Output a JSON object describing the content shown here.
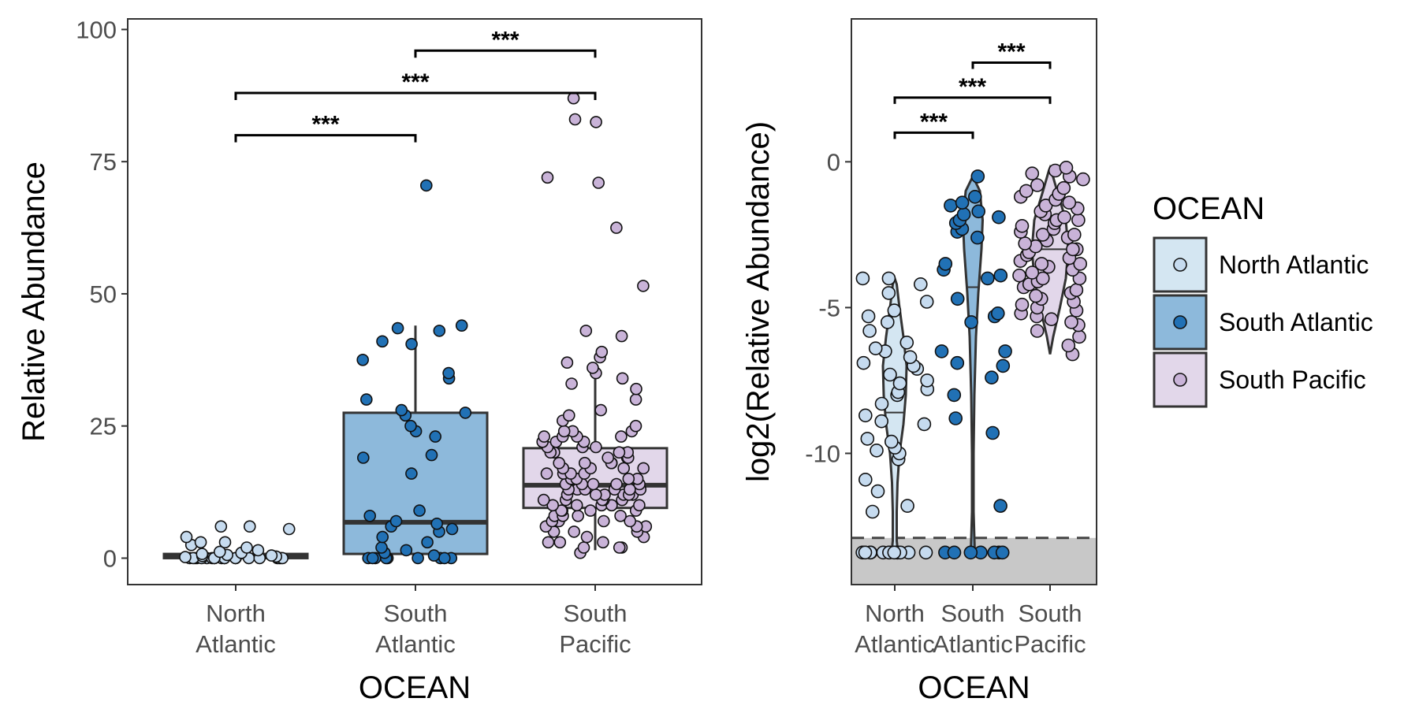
{
  "chart_data": [
    {
      "type": "box",
      "xlabel": "OCEAN",
      "ylabel": "Relative Abundance",
      "categories": [
        "North Atlantic",
        "South Atlantic",
        "South Pacific"
      ],
      "category_lines": [
        [
          "North",
          "Atlantic"
        ],
        [
          "South",
          "Atlantic"
        ],
        [
          "South",
          "Pacific"
        ]
      ],
      "ylim": [
        -5,
        102
      ],
      "yticks": [
        0,
        25,
        50,
        75,
        100
      ],
      "boxes": [
        {
          "category": "North Atlantic",
          "q1": 0.0,
          "median": 0.3,
          "q3": 0.8,
          "whisker_low": 0.0,
          "whisker_high": 0.8
        },
        {
          "category": "South Atlantic",
          "q1": 0.8,
          "median": 6.8,
          "q3": 27.5,
          "whisker_low": 0.0,
          "whisker_high": 44.0
        },
        {
          "category": "South Pacific",
          "q1": 9.5,
          "median": 13.8,
          "q3": 20.8,
          "whisker_low": 1.5,
          "whisker_high": 37.0
        }
      ],
      "points": {
        "North Atlantic": [
          0,
          0,
          0,
          0,
          0,
          0,
          0,
          0,
          0,
          0,
          0,
          0,
          0,
          0,
          0,
          0,
          0,
          0,
          0,
          0,
          0.2,
          0.3,
          0.4,
          0.5,
          0.6,
          0.8,
          1.0,
          1.2,
          1.5,
          2.0,
          2.5,
          3.0,
          3.0,
          4.0,
          5.5,
          6.0,
          6.0
        ],
        "South Atlantic": [
          0,
          0,
          0,
          0,
          0,
          0,
          0,
          0,
          0,
          0.5,
          1.0,
          1.5,
          2.0,
          3.0,
          4.0,
          5.0,
          5.5,
          6.0,
          6.5,
          7.0,
          8.0,
          9.0,
          16.0,
          19.0,
          19.5,
          23.0,
          24.0,
          25.0,
          27.0,
          27.5,
          28.0,
          30.0,
          34.0,
          35.0,
          37.5,
          40.5,
          41.0,
          43.0,
          43.5,
          44.0,
          70.5
        ],
        "South Pacific": [
          1,
          2,
          2,
          2,
          3,
          3,
          3,
          4,
          4,
          5,
          5,
          5,
          6,
          6,
          6,
          7,
          7,
          7,
          7,
          8,
          8,
          8,
          8,
          9,
          9,
          9,
          9,
          10,
          10,
          10,
          10,
          10,
          11,
          11,
          11,
          11,
          11,
          12,
          12,
          12,
          12,
          12,
          12,
          13,
          13,
          13,
          13,
          13,
          13,
          14,
          14,
          14,
          14,
          14,
          15,
          15,
          15,
          15,
          15,
          16,
          16,
          16,
          16,
          17,
          17,
          17,
          17,
          18,
          18,
          18,
          18,
          19,
          19,
          19,
          20,
          20,
          20,
          20,
          21,
          21,
          21,
          22,
          22,
          22,
          23,
          23,
          23,
          23,
          24,
          24,
          24,
          25,
          26,
          27,
          28,
          30,
          32,
          33,
          34,
          35,
          36,
          37,
          38,
          39,
          42,
          43,
          51.5,
          62.5,
          71,
          72,
          82.5,
          83,
          87
        ]
      },
      "brackets": [
        {
          "from": "North Atlantic",
          "to": "South Atlantic",
          "y": 80,
          "label": "***"
        },
        {
          "from": "North Atlantic",
          "to": "South Pacific",
          "y": 88,
          "label": "***"
        },
        {
          "from": "South Atlantic",
          "to": "South Pacific",
          "y": 96,
          "label": "***"
        }
      ],
      "grid": false
    },
    {
      "type": "violin",
      "xlabel": "OCEAN",
      "ylabel": "log2(Relative Abundance)",
      "categories": [
        "North Atlantic",
        "South Atlantic",
        "South Pacific"
      ],
      "category_lines": [
        [
          "North",
          "Atlantic"
        ],
        [
          "South",
          "Atlantic"
        ],
        [
          "South",
          "Pacific"
        ]
      ],
      "ylim": [
        -14.5,
        4.9
      ],
      "yticks": [
        0,
        -5,
        -10
      ],
      "detection_limit": -12.9,
      "floor_value": -13.4,
      "violins": [
        {
          "category": "North Atlantic",
          "median": -8.6,
          "q1": -13.4,
          "q3": -6.1,
          "min": -13.4,
          "max": -4.0,
          "density": [
            [
              -13.4,
              0.08
            ],
            [
              -13.0,
              0.05
            ],
            [
              -12.0,
              0.05
            ],
            [
              -11.0,
              0.07
            ],
            [
              -10.0,
              0.12
            ],
            [
              -9.0,
              0.22
            ],
            [
              -8.0,
              0.28
            ],
            [
              -7.0,
              0.3
            ],
            [
              -6.0,
              0.22
            ],
            [
              -5.0,
              0.12
            ],
            [
              -4.2,
              0.05
            ],
            [
              -4.0,
              0.0
            ]
          ]
        },
        {
          "category": "South Atlantic",
          "median": -4.3,
          "q1": -13.4,
          "q3": -2.5,
          "min": -13.4,
          "max": -0.5,
          "density": [
            [
              -13.4,
              0.05
            ],
            [
              -12.0,
              0.02
            ],
            [
              -10.0,
              0.02
            ],
            [
              -8.0,
              0.04
            ],
            [
              -6.0,
              0.08
            ],
            [
              -4.5,
              0.14
            ],
            [
              -3.0,
              0.22
            ],
            [
              -2.0,
              0.25
            ],
            [
              -1.0,
              0.18
            ],
            [
              -0.5,
              0.0
            ]
          ]
        },
        {
          "category": "South Pacific",
          "median": -3.0,
          "q1": -4.0,
          "q3": -2.0,
          "min": -6.6,
          "max": -0.2,
          "density": [
            [
              -6.6,
              0.0
            ],
            [
              -6.0,
              0.08
            ],
            [
              -5.0,
              0.25
            ],
            [
              -4.0,
              0.4
            ],
            [
              -3.0,
              0.46
            ],
            [
              -2.0,
              0.4
            ],
            [
              -1.0,
              0.18
            ],
            [
              -0.3,
              0.03
            ],
            [
              -0.2,
              0.0
            ]
          ]
        }
      ],
      "points": {
        "North Atlantic": [
          -13.4,
          -13.4,
          -13.4,
          -13.4,
          -13.4,
          -13.4,
          -13.4,
          -13.4,
          -13.4,
          -13.4,
          -13.4,
          -13.4,
          -13.4,
          -12.0,
          -11.8,
          -11.3,
          -10.9,
          -10.2,
          -10.0,
          -9.9,
          -9.8,
          -9.6,
          -9.5,
          -9.0,
          -8.9,
          -8.7,
          -8.3,
          -8.0,
          -7.9,
          -7.8,
          -7.6,
          -7.5,
          -7.3,
          -7.1,
          -7.0,
          -6.9,
          -6.7,
          -6.5,
          -6.4,
          -6.2,
          -5.8,
          -5.5,
          -5.3,
          -5.1,
          -4.8,
          -4.5,
          -4.2,
          -4.0,
          -4.0
        ],
        "South Atlantic": [
          -13.4,
          -13.4,
          -13.4,
          -13.4,
          -13.4,
          -13.4,
          -13.4,
          -11.8,
          -9.3,
          -8.8,
          -8.0,
          -7.4,
          -7.0,
          -6.9,
          -6.5,
          -6.5,
          -5.5,
          -5.3,
          -5.2,
          -4.7,
          -4.0,
          -3.9,
          -3.7,
          -3.5,
          -2.6,
          -2.4,
          -2.3,
          -2.1,
          -2.0,
          -1.9,
          -1.8,
          -1.7,
          -1.5,
          -1.4,
          -1.2,
          -0.5
        ],
        "South Pacific": [
          -6.6,
          -6.3,
          -6.0,
          -5.8,
          -5.6,
          -5.5,
          -5.4,
          -5.3,
          -5.2,
          -5.1,
          -5.0,
          -4.9,
          -4.8,
          -4.7,
          -4.6,
          -4.5,
          -4.4,
          -4.3,
          -4.2,
          -4.1,
          -4.0,
          -4.0,
          -3.9,
          -3.8,
          -3.7,
          -3.6,
          -3.5,
          -3.5,
          -3.4,
          -3.3,
          -3.2,
          -3.1,
          -3.0,
          -3.0,
          -2.9,
          -2.8,
          -2.7,
          -2.6,
          -2.5,
          -2.5,
          -2.4,
          -2.3,
          -2.2,
          -2.1,
          -2.0,
          -2.0,
          -1.9,
          -1.8,
          -1.7,
          -1.6,
          -1.5,
          -1.4,
          -1.3,
          -1.2,
          -1.1,
          -1.0,
          -0.9,
          -0.8,
          -0.6,
          -0.5,
          -0.4,
          -0.3,
          -0.2
        ]
      },
      "brackets": [
        {
          "from": "North Atlantic",
          "to": "South Atlantic",
          "y": 1.0,
          "label": "***"
        },
        {
          "from": "North Atlantic",
          "to": "South Pacific",
          "y": 2.2,
          "label": "***"
        },
        {
          "from": "South Atlantic",
          "to": "South Pacific",
          "y": 3.4,
          "label": "***"
        }
      ],
      "grid": false
    }
  ],
  "legend": {
    "title": "OCEAN",
    "placement": "right",
    "items": [
      {
        "label": "North Atlantic",
        "color": "#d4e6f2",
        "point_color": "#c6dbef"
      },
      {
        "label": "South Atlantic",
        "color": "#8db9db",
        "point_color": "#2171b5"
      },
      {
        "label": "South Pacific",
        "color": "#e2d7ea",
        "point_color": "#c9b3d8"
      }
    ]
  },
  "colors": {
    "panel_border": "#333333",
    "box_line": "#333333",
    "floor_band": "#c8c8c8",
    "point_outline": "#111111",
    "bracket": "#000000"
  }
}
